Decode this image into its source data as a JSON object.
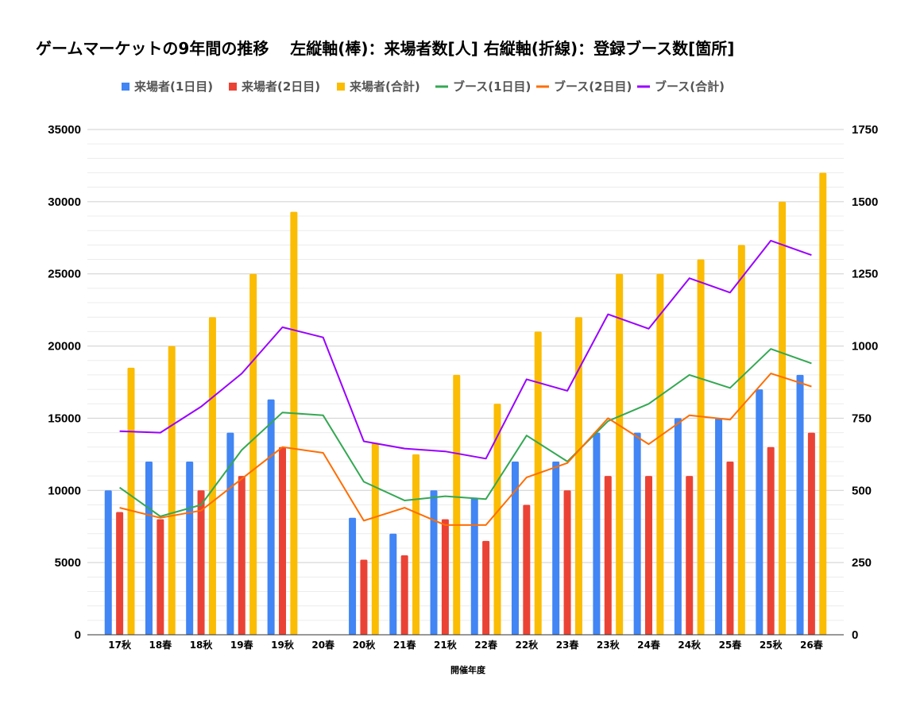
{
  "chart_data": {
    "type": "bar",
    "title": "ゲームマーケットの9年間の推移　 左縦軸(棒)：来場者数[人]  右縦軸(折線)：登録ブース数[箇所]",
    "xlabel": "開催年度",
    "categories": [
      "17秋",
      "18春",
      "18秋",
      "19春",
      "19秋",
      "20春",
      "20秋",
      "21春",
      "21秋",
      "22春",
      "22秋",
      "23春",
      "23秋",
      "24春",
      "24秋",
      "25春",
      "25秋",
      "26春"
    ],
    "ylim_left": [
      0,
      35000
    ],
    "ylim_right": [
      0,
      1750
    ],
    "yticks_left": [
      "0",
      "5000",
      "10000",
      "15000",
      "20000",
      "25000",
      "30000",
      "35000"
    ],
    "yticks_right": [
      "0",
      "250",
      "500",
      "750",
      "1000",
      "1250",
      "1500",
      "1750"
    ],
    "grid": true,
    "legend_position": "top",
    "bar_series": [
      {
        "name": "来場者(1日目)",
        "color": "#4285F4",
        "values": [
          10000,
          12000,
          12000,
          14000,
          16300,
          null,
          8100,
          7000,
          10000,
          9500,
          12000,
          12000,
          14000,
          14000,
          15000,
          15000,
          17000,
          18000
        ]
      },
      {
        "name": "来場者(2日目)",
        "color": "#EA4335",
        "values": [
          8500,
          8000,
          10000,
          11000,
          13000,
          null,
          5200,
          5500,
          8000,
          6500,
          9000,
          10000,
          11000,
          11000,
          11000,
          12000,
          13000,
          14000
        ]
      },
      {
        "name": "来場者(合計)",
        "color": "#FBBC04",
        "values": [
          18500,
          20000,
          22000,
          25000,
          29300,
          null,
          13300,
          12500,
          18000,
          16000,
          21000,
          22000,
          25000,
          25000,
          26000,
          27000,
          30000,
          32000
        ]
      }
    ],
    "line_series": [
      {
        "name": "ブース(1日目)",
        "color": "#34A853",
        "values": [
          510,
          410,
          450,
          640,
          770,
          760,
          530,
          465,
          480,
          470,
          690,
          600,
          740,
          800,
          900,
          855,
          990,
          940
        ]
      },
      {
        "name": "ブース(2日目)",
        "color": "#FF6D01",
        "values": [
          440,
          405,
          430,
          540,
          650,
          630,
          395,
          440,
          380,
          380,
          545,
          595,
          750,
          660,
          760,
          745,
          905,
          860
        ]
      },
      {
        "name": "ブース(合計)",
        "color": "#9900FF",
        "values": [
          705,
          700,
          790,
          905,
          1065,
          1030,
          670,
          645,
          635,
          610,
          885,
          845,
          1110,
          1060,
          1235,
          1185,
          1365,
          1315
        ]
      }
    ]
  }
}
